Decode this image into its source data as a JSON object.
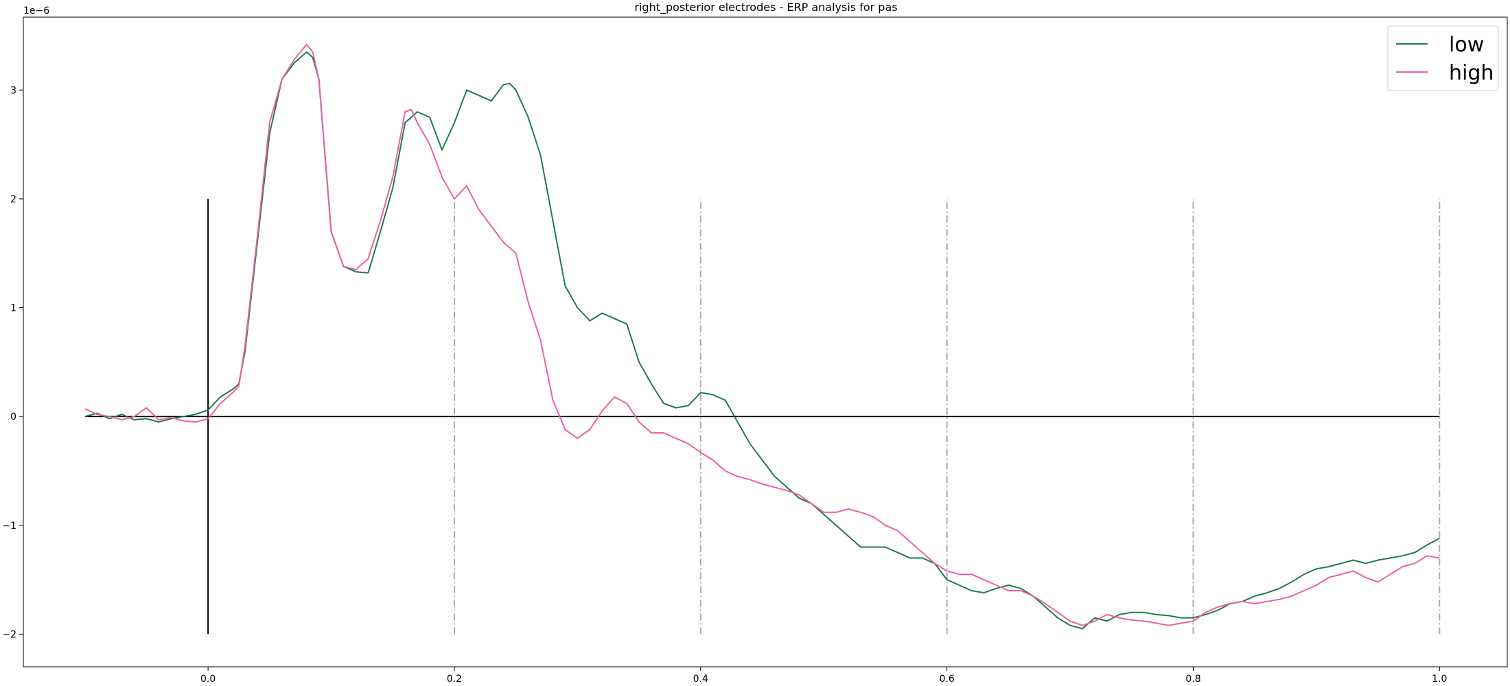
{
  "chart_data": {
    "type": "line",
    "title": "right_posterior electrodes - ERP analysis for pas",
    "xlabel": "",
    "ylabel": "",
    "y_offset_label": "1e−6",
    "xlim": [
      -0.15,
      1.055
    ],
    "ylim": [
      -2.3,
      3.67
    ],
    "x_ticks": [
      0.0,
      0.2,
      0.4,
      0.6,
      0.8,
      1.0
    ],
    "x_tick_labels": [
      "0.0",
      "0.2",
      "0.4",
      "0.6",
      "0.8",
      "1.0"
    ],
    "y_ticks": [
      -2,
      -1,
      0,
      1,
      2,
      3
    ],
    "y_tick_labels": [
      "−2",
      "−1",
      "0",
      "1",
      "2",
      "3"
    ],
    "grid": false,
    "legend_position": "top-right",
    "reference_lines": {
      "zero_vertical": {
        "x": 0.0,
        "y_range": [
          -2,
          2
        ],
        "color": "#000000"
      },
      "zero_horizontal": {
        "y": 0.0,
        "x_range": [
          -0.1,
          1.0
        ],
        "color": "#000000"
      },
      "vertical_dashdot": {
        "x": [
          0.2,
          0.4,
          0.6,
          0.8,
          1.0
        ],
        "y_range": [
          -2,
          2
        ],
        "color": "#aaaaaa"
      }
    },
    "series": [
      {
        "name": "low",
        "color": "#1f7a4d",
        "x": [
          -0.1,
          -0.09,
          -0.08,
          -0.07,
          -0.06,
          -0.05,
          -0.04,
          -0.03,
          -0.02,
          -0.01,
          0.0,
          0.01,
          0.02,
          0.025,
          0.03,
          0.04,
          0.05,
          0.06,
          0.07,
          0.08,
          0.085,
          0.09,
          0.1,
          0.11,
          0.12,
          0.13,
          0.14,
          0.15,
          0.16,
          0.17,
          0.18,
          0.19,
          0.2,
          0.21,
          0.22,
          0.23,
          0.24,
          0.245,
          0.25,
          0.26,
          0.27,
          0.28,
          0.29,
          0.3,
          0.31,
          0.32,
          0.33,
          0.34,
          0.35,
          0.36,
          0.37,
          0.38,
          0.39,
          0.4,
          0.41,
          0.42,
          0.43,
          0.44,
          0.45,
          0.46,
          0.47,
          0.48,
          0.49,
          0.5,
          0.51,
          0.52,
          0.53,
          0.54,
          0.55,
          0.56,
          0.57,
          0.58,
          0.59,
          0.6,
          0.61,
          0.62,
          0.63,
          0.64,
          0.65,
          0.66,
          0.67,
          0.68,
          0.69,
          0.7,
          0.71,
          0.72,
          0.73,
          0.74,
          0.75,
          0.76,
          0.77,
          0.78,
          0.79,
          0.8,
          0.81,
          0.82,
          0.83,
          0.84,
          0.85,
          0.86,
          0.87,
          0.88,
          0.89,
          0.9,
          0.91,
          0.92,
          0.93,
          0.94,
          0.95,
          0.96,
          0.97,
          0.98,
          0.99,
          1.0
        ],
        "values": [
          0.0,
          0.03,
          -0.02,
          0.02,
          -0.03,
          -0.02,
          -0.05,
          -0.02,
          0.0,
          0.02,
          0.06,
          0.18,
          0.25,
          0.3,
          0.6,
          1.6,
          2.6,
          3.1,
          3.25,
          3.35,
          3.3,
          3.1,
          1.7,
          1.38,
          1.33,
          1.32,
          1.7,
          2.1,
          2.7,
          2.8,
          2.75,
          2.45,
          2.7,
          3.0,
          2.95,
          2.9,
          3.05,
          3.06,
          3.0,
          2.75,
          2.4,
          1.8,
          1.2,
          1.0,
          0.88,
          0.95,
          0.9,
          0.85,
          0.5,
          0.3,
          0.12,
          0.08,
          0.1,
          0.22,
          0.2,
          0.15,
          -0.05,
          -0.25,
          -0.4,
          -0.55,
          -0.65,
          -0.75,
          -0.8,
          -0.9,
          -1.0,
          -1.1,
          -1.2,
          -1.2,
          -1.2,
          -1.25,
          -1.3,
          -1.3,
          -1.35,
          -1.5,
          -1.55,
          -1.6,
          -1.62,
          -1.58,
          -1.55,
          -1.58,
          -1.65,
          -1.75,
          -1.85,
          -1.92,
          -1.95,
          -1.85,
          -1.88,
          -1.82,
          -1.8,
          -1.8,
          -1.82,
          -1.83,
          -1.85,
          -1.85,
          -1.82,
          -1.78,
          -1.72,
          -1.7,
          -1.65,
          -1.62,
          -1.58,
          -1.52,
          -1.45,
          -1.4,
          -1.38,
          -1.35,
          -1.32,
          -1.35,
          -1.32,
          -1.3,
          -1.28,
          -1.25,
          -1.18,
          -1.12
        ]
      },
      {
        "name": "high",
        "color": "#ec5fa8",
        "x": [
          -0.1,
          -0.09,
          -0.08,
          -0.07,
          -0.06,
          -0.05,
          -0.04,
          -0.03,
          -0.02,
          -0.01,
          0.0,
          0.01,
          0.02,
          0.025,
          0.03,
          0.04,
          0.05,
          0.06,
          0.07,
          0.08,
          0.085,
          0.09,
          0.1,
          0.11,
          0.12,
          0.13,
          0.14,
          0.15,
          0.16,
          0.165,
          0.17,
          0.18,
          0.19,
          0.2,
          0.21,
          0.22,
          0.23,
          0.24,
          0.25,
          0.26,
          0.27,
          0.28,
          0.29,
          0.3,
          0.31,
          0.32,
          0.33,
          0.34,
          0.35,
          0.36,
          0.37,
          0.38,
          0.39,
          0.4,
          0.41,
          0.42,
          0.43,
          0.44,
          0.45,
          0.46,
          0.47,
          0.48,
          0.49,
          0.5,
          0.51,
          0.52,
          0.53,
          0.54,
          0.55,
          0.56,
          0.57,
          0.58,
          0.59,
          0.6,
          0.61,
          0.62,
          0.63,
          0.64,
          0.65,
          0.66,
          0.67,
          0.68,
          0.69,
          0.7,
          0.71,
          0.72,
          0.73,
          0.74,
          0.75,
          0.76,
          0.77,
          0.78,
          0.79,
          0.8,
          0.81,
          0.82,
          0.83,
          0.84,
          0.85,
          0.86,
          0.87,
          0.88,
          0.89,
          0.9,
          0.91,
          0.92,
          0.93,
          0.94,
          0.95,
          0.96,
          0.97,
          0.98,
          0.99,
          1.0
        ],
        "values": [
          0.07,
          0.02,
          0.0,
          -0.03,
          0.0,
          0.08,
          -0.03,
          -0.01,
          -0.04,
          -0.05,
          -0.02,
          0.12,
          0.22,
          0.28,
          0.65,
          1.65,
          2.7,
          3.1,
          3.28,
          3.42,
          3.35,
          3.1,
          1.7,
          1.38,
          1.35,
          1.45,
          1.8,
          2.2,
          2.8,
          2.82,
          2.7,
          2.5,
          2.2,
          2.0,
          2.12,
          1.9,
          1.75,
          1.6,
          1.5,
          1.05,
          0.7,
          0.15,
          -0.12,
          -0.2,
          -0.12,
          0.05,
          0.18,
          0.12,
          -0.05,
          -0.15,
          -0.15,
          -0.2,
          -0.25,
          -0.33,
          -0.4,
          -0.5,
          -0.55,
          -0.58,
          -0.62,
          -0.65,
          -0.68,
          -0.72,
          -0.8,
          -0.88,
          -0.88,
          -0.85,
          -0.88,
          -0.92,
          -1.0,
          -1.05,
          -1.15,
          -1.25,
          -1.35,
          -1.42,
          -1.45,
          -1.45,
          -1.5,
          -1.55,
          -1.6,
          -1.6,
          -1.65,
          -1.72,
          -1.8,
          -1.88,
          -1.92,
          -1.88,
          -1.82,
          -1.85,
          -1.87,
          -1.88,
          -1.9,
          -1.92,
          -1.9,
          -1.88,
          -1.8,
          -1.75,
          -1.72,
          -1.7,
          -1.72,
          -1.7,
          -1.68,
          -1.65,
          -1.6,
          -1.55,
          -1.48,
          -1.45,
          -1.42,
          -1.48,
          -1.52,
          -1.45,
          -1.38,
          -1.35,
          -1.28,
          -1.3
        ]
      }
    ]
  }
}
